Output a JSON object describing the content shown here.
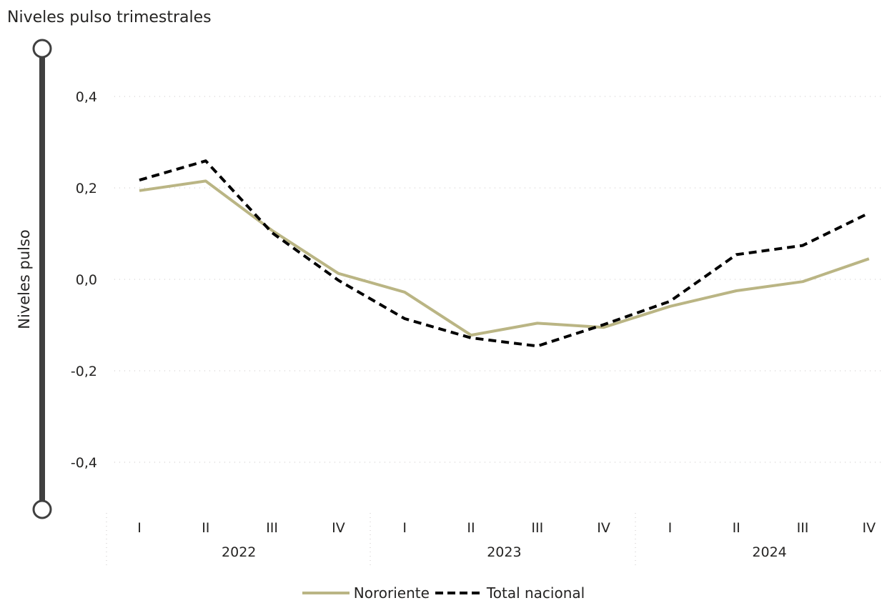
{
  "chart_data": {
    "type": "line",
    "title": "Niveles pulso trimestrales",
    "xlabel": "",
    "ylabel": "Niveles pulso",
    "x_quarters": [
      "I",
      "II",
      "III",
      "IV",
      "I",
      "II",
      "III",
      "IV",
      "I",
      "II",
      "III",
      "IV"
    ],
    "x_years": [
      "2022",
      "2023",
      "2024"
    ],
    "y_ticks": [
      "0,4",
      "0,2",
      "0,0",
      "-0,2",
      "-0,4"
    ],
    "ylim": [
      -0.5,
      0.4
    ],
    "grid": true,
    "legend_position": "bottom-center",
    "series": [
      {
        "name": "Nororiente",
        "color": "#BAB584",
        "style": "solid",
        "values": [
          0.194,
          0.215,
          0.107,
          0.013,
          -0.028,
          -0.122,
          -0.096,
          -0.105,
          -0.059,
          -0.025,
          -0.005,
          0.045
        ]
      },
      {
        "name": "Total nacional",
        "color": "#000000",
        "style": "dashed",
        "values": [
          0.217,
          0.259,
          0.102,
          -0.002,
          -0.086,
          -0.128,
          -0.146,
          -0.099,
          -0.048,
          0.054,
          0.074,
          0.145
        ]
      }
    ]
  }
}
